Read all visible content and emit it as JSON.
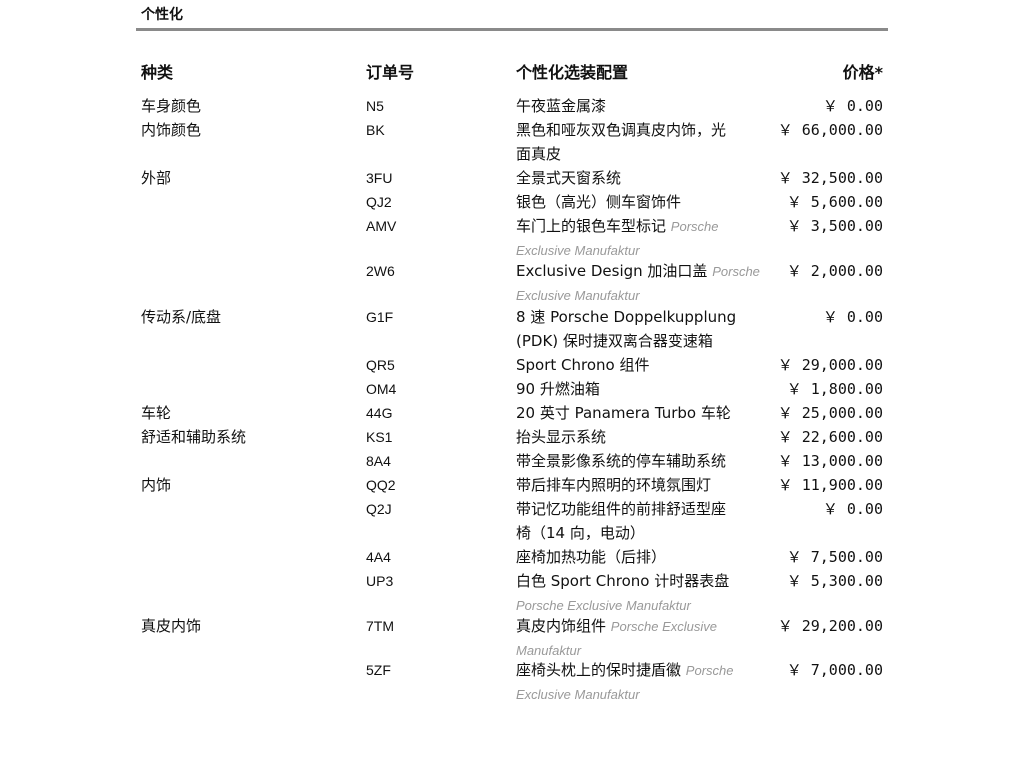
{
  "title": "个性化",
  "headers": {
    "category": "种类",
    "code": "订单号",
    "option": "个性化选装配置",
    "price": "价格*"
  },
  "rows": [
    {
      "category": "车身颜色",
      "code": "N5",
      "option": "午夜蓝金属漆",
      "note": "",
      "price": "￥ 0.00"
    },
    {
      "category": "内饰颜色",
      "code": "BK",
      "option": "黑色和哑灰双色调真皮内饰，光面真皮",
      "note": "",
      "price": "￥ 66,000.00"
    },
    {
      "category": "外部",
      "code": "3FU",
      "option": "全景式天窗系统",
      "note": "",
      "price": "￥ 32,500.00"
    },
    {
      "category": "",
      "code": "QJ2",
      "option": "银色（高光）侧车窗饰件",
      "note": "",
      "price": "￥ 5,600.00"
    },
    {
      "category": "",
      "code": "AMV",
      "option": "车门上的银色车型标记",
      "note": "Porsche Exclusive Manufaktur",
      "price": "￥ 3,500.00"
    },
    {
      "category": "",
      "code": "2W6",
      "option": "Exclusive Design 加油口盖",
      "note": "Porsche Exclusive Manufaktur",
      "price": "￥ 2,000.00"
    },
    {
      "category": "传动系/底盘",
      "code": "G1F",
      "option": "8 速 Porsche Doppelkupplung (PDK) 保时捷双离合器变速箱",
      "note": "",
      "price": "￥ 0.00"
    },
    {
      "category": "",
      "code": "QR5",
      "option": "Sport Chrono 组件",
      "note": "",
      "price": "￥ 29,000.00"
    },
    {
      "category": "",
      "code": "OM4",
      "option": "90 升燃油箱",
      "note": "",
      "price": "￥ 1,800.00"
    },
    {
      "category": "车轮",
      "code": "44G",
      "option": "20 英寸 Panamera Turbo 车轮",
      "note": "",
      "price": "￥ 25,000.00"
    },
    {
      "category": "舒适和辅助系统",
      "code": "KS1",
      "option": "抬头显示系统",
      "note": "",
      "price": "￥ 22,600.00"
    },
    {
      "category": "",
      "code": "8A4",
      "option": "带全景影像系统的停车辅助系统",
      "note": "",
      "price": "￥ 13,000.00"
    },
    {
      "category": "内饰",
      "code": "QQ2",
      "option": "带后排车内照明的环境氛围灯",
      "note": "",
      "price": "￥ 11,900.00"
    },
    {
      "category": "",
      "code": "Q2J",
      "option": "带记忆功能组件的前排舒适型座椅（14 向，电动）",
      "note": "",
      "price": "￥ 0.00"
    },
    {
      "category": "",
      "code": "4A4",
      "option": "座椅加热功能（后排）",
      "note": "",
      "price": "￥ 7,500.00"
    },
    {
      "category": "",
      "code": "UP3",
      "option": "白色 Sport Chrono 计时器表盘",
      "note": "Porsche Exclusive Manufaktur",
      "price": "￥ 5,300.00"
    },
    {
      "category": "真皮内饰",
      "code": "7TM",
      "option": "真皮内饰组件",
      "note": "Porsche Exclusive Manufaktur",
      "price": "￥ 29,200.00"
    },
    {
      "category": "",
      "code": "5ZF",
      "option": "座椅头枕上的保时捷盾徽",
      "note": "Porsche Exclusive Manufaktur",
      "price": "￥ 7,000.00"
    }
  ]
}
